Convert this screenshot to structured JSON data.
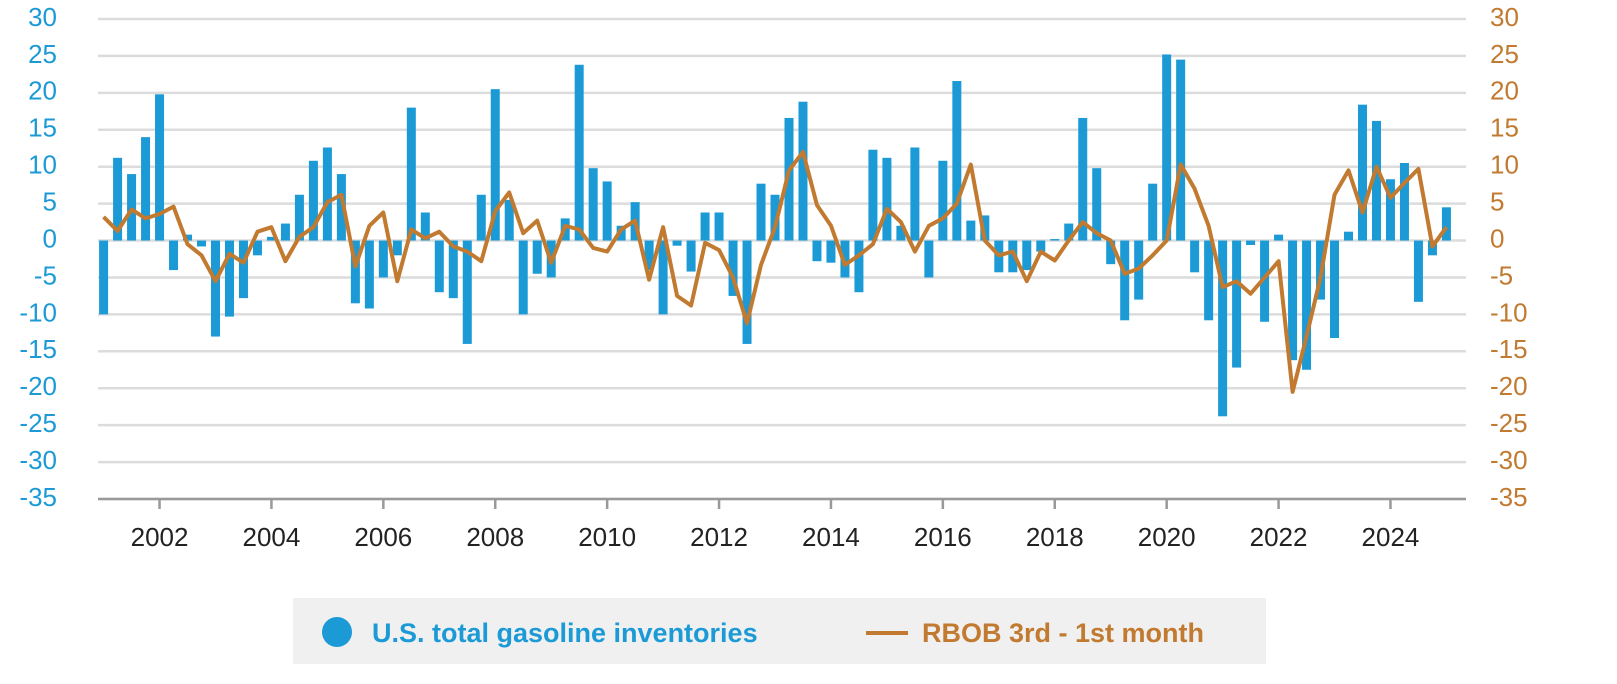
{
  "chart_data": {
    "type": "bar",
    "x": [
      2001,
      2001.25,
      2001.5,
      2001.75,
      2002,
      2002.25,
      2002.5,
      2002.75,
      2003,
      2003.25,
      2003.5,
      2003.75,
      2004,
      2004.25,
      2004.5,
      2004.75,
      2005,
      2005.25,
      2005.5,
      2005.75,
      2006,
      2006.25,
      2006.5,
      2006.75,
      2007,
      2007.25,
      2007.5,
      2007.75,
      2008,
      2008.25,
      2008.5,
      2008.75,
      2009,
      2009.25,
      2009.5,
      2009.75,
      2010,
      2010.25,
      2010.5,
      2010.75,
      2011,
      2011.25,
      2011.5,
      2011.75,
      2012,
      2012.25,
      2012.5,
      2012.75,
      2013,
      2013.25,
      2013.5,
      2013.75,
      2014,
      2014.25,
      2014.5,
      2014.75,
      2015,
      2015.25,
      2015.5,
      2015.75,
      2016,
      2016.25,
      2016.5,
      2016.75,
      2017,
      2017.25,
      2017.5,
      2017.75,
      2018,
      2018.25,
      2018.5,
      2018.75,
      2019,
      2019.25,
      2019.5,
      2019.75,
      2020,
      2020.25,
      2020.5,
      2020.75,
      2021,
      2021.25,
      2021.5,
      2021.75,
      2022,
      2022.25,
      2022.5,
      2022.75,
      2023,
      2023.25,
      2023.5,
      2023.75,
      2024,
      2024.25,
      2024.5,
      2024.75,
      2025
    ],
    "series": [
      {
        "name": "U.S. total gasoline inventories",
        "type": "bar",
        "color": "#1b9ad6",
        "values": [
          -10,
          11.2,
          9,
          14,
          19.8,
          -4,
          0.8,
          -0.8,
          -13,
          -10.3,
          -7.8,
          -2,
          0.5,
          2.3,
          6.2,
          10.8,
          12.6,
          9,
          -8.5,
          -9.2,
          -5,
          -2,
          18,
          3.8,
          -7,
          -7.8,
          -14,
          6.2,
          20.5,
          5.5,
          -10,
          -4.5,
          -5,
          3,
          23.8,
          9.8,
          8,
          2,
          5.2,
          -4,
          -10,
          -0.7,
          -4.2,
          3.8,
          3.8,
          -7.5,
          -14,
          7.7,
          6.2,
          16.6,
          18.8,
          -2.8,
          -3,
          -5,
          -7,
          12.3,
          11.2,
          2,
          12.6,
          -5,
          10.8,
          21.6,
          2.7,
          3.4,
          -4.3,
          -4.3,
          -4,
          -1.5,
          0.2,
          2.3,
          16.6,
          9.8,
          -3.2,
          -10.8,
          -8,
          7.7,
          25.2,
          24.5,
          -4.3,
          -10.8,
          -23.8,
          -17.2,
          -0.6,
          -11,
          0.8,
          -16.2,
          -17.5,
          -8,
          -13.2,
          1.2,
          18.4,
          16.2,
          8.3,
          10.5,
          -8.3,
          -2,
          4.5
        ]
      },
      {
        "name": "RBOB 3rd - 1st month",
        "type": "line",
        "axis": "y2",
        "color": "#c17a2f",
        "values": [
          3.2,
          1.3,
          4.2,
          3,
          3.6,
          4.6,
          -0.5,
          -2,
          -5.5,
          -1.8,
          -3,
          1.2,
          1.8,
          -2.8,
          0.5,
          1.8,
          5.2,
          6.2,
          -3.5,
          2,
          3.8,
          -5.5,
          1.5,
          0.3,
          1.2,
          -0.8,
          -1.5,
          -2.8,
          4,
          6.5,
          1,
          2.7,
          -3,
          2,
          1.5,
          -1,
          -1.5,
          1.5,
          2.7,
          -5.3,
          1.8,
          -7.5,
          -8.8,
          -0.3,
          -1.3,
          -5,
          -11.2,
          -3.3,
          1.8,
          9.5,
          12,
          4.8,
          2,
          -3.3,
          -2,
          -0.5,
          4.3,
          2.5,
          -1.5,
          2,
          3,
          5,
          10.3,
          0,
          -2,
          -1.5,
          -5.5,
          -1.5,
          -2.7,
          0,
          2.5,
          1,
          0,
          -4.5,
          -3.8,
          -2,
          0,
          10.3,
          7,
          2,
          -6.3,
          -5.5,
          -7.2,
          -5,
          -2.8,
          -20.5,
          -13,
          -5,
          6.2,
          9.5,
          3.8,
          10,
          5.8,
          7.8,
          9.7,
          -0.8,
          1.8
        ]
      }
    ],
    "xlim": [
      2000.9,
      2025.35
    ],
    "xticks": [
      2002,
      2004,
      2006,
      2008,
      2010,
      2012,
      2014,
      2016,
      2018,
      2020,
      2022,
      2024
    ],
    "ylim": [
      -35,
      30
    ],
    "yticks": [
      -35,
      -30,
      -25,
      -20,
      -15,
      -10,
      -5,
      0,
      5,
      10,
      15,
      20,
      25,
      30
    ],
    "y2lim": [
      -35,
      30
    ],
    "y2ticks": [
      -35,
      -30,
      -25,
      -20,
      -15,
      -10,
      -5,
      0,
      5,
      10,
      15,
      20,
      25,
      30
    ],
    "grid": true,
    "legend": "bottom"
  }
}
